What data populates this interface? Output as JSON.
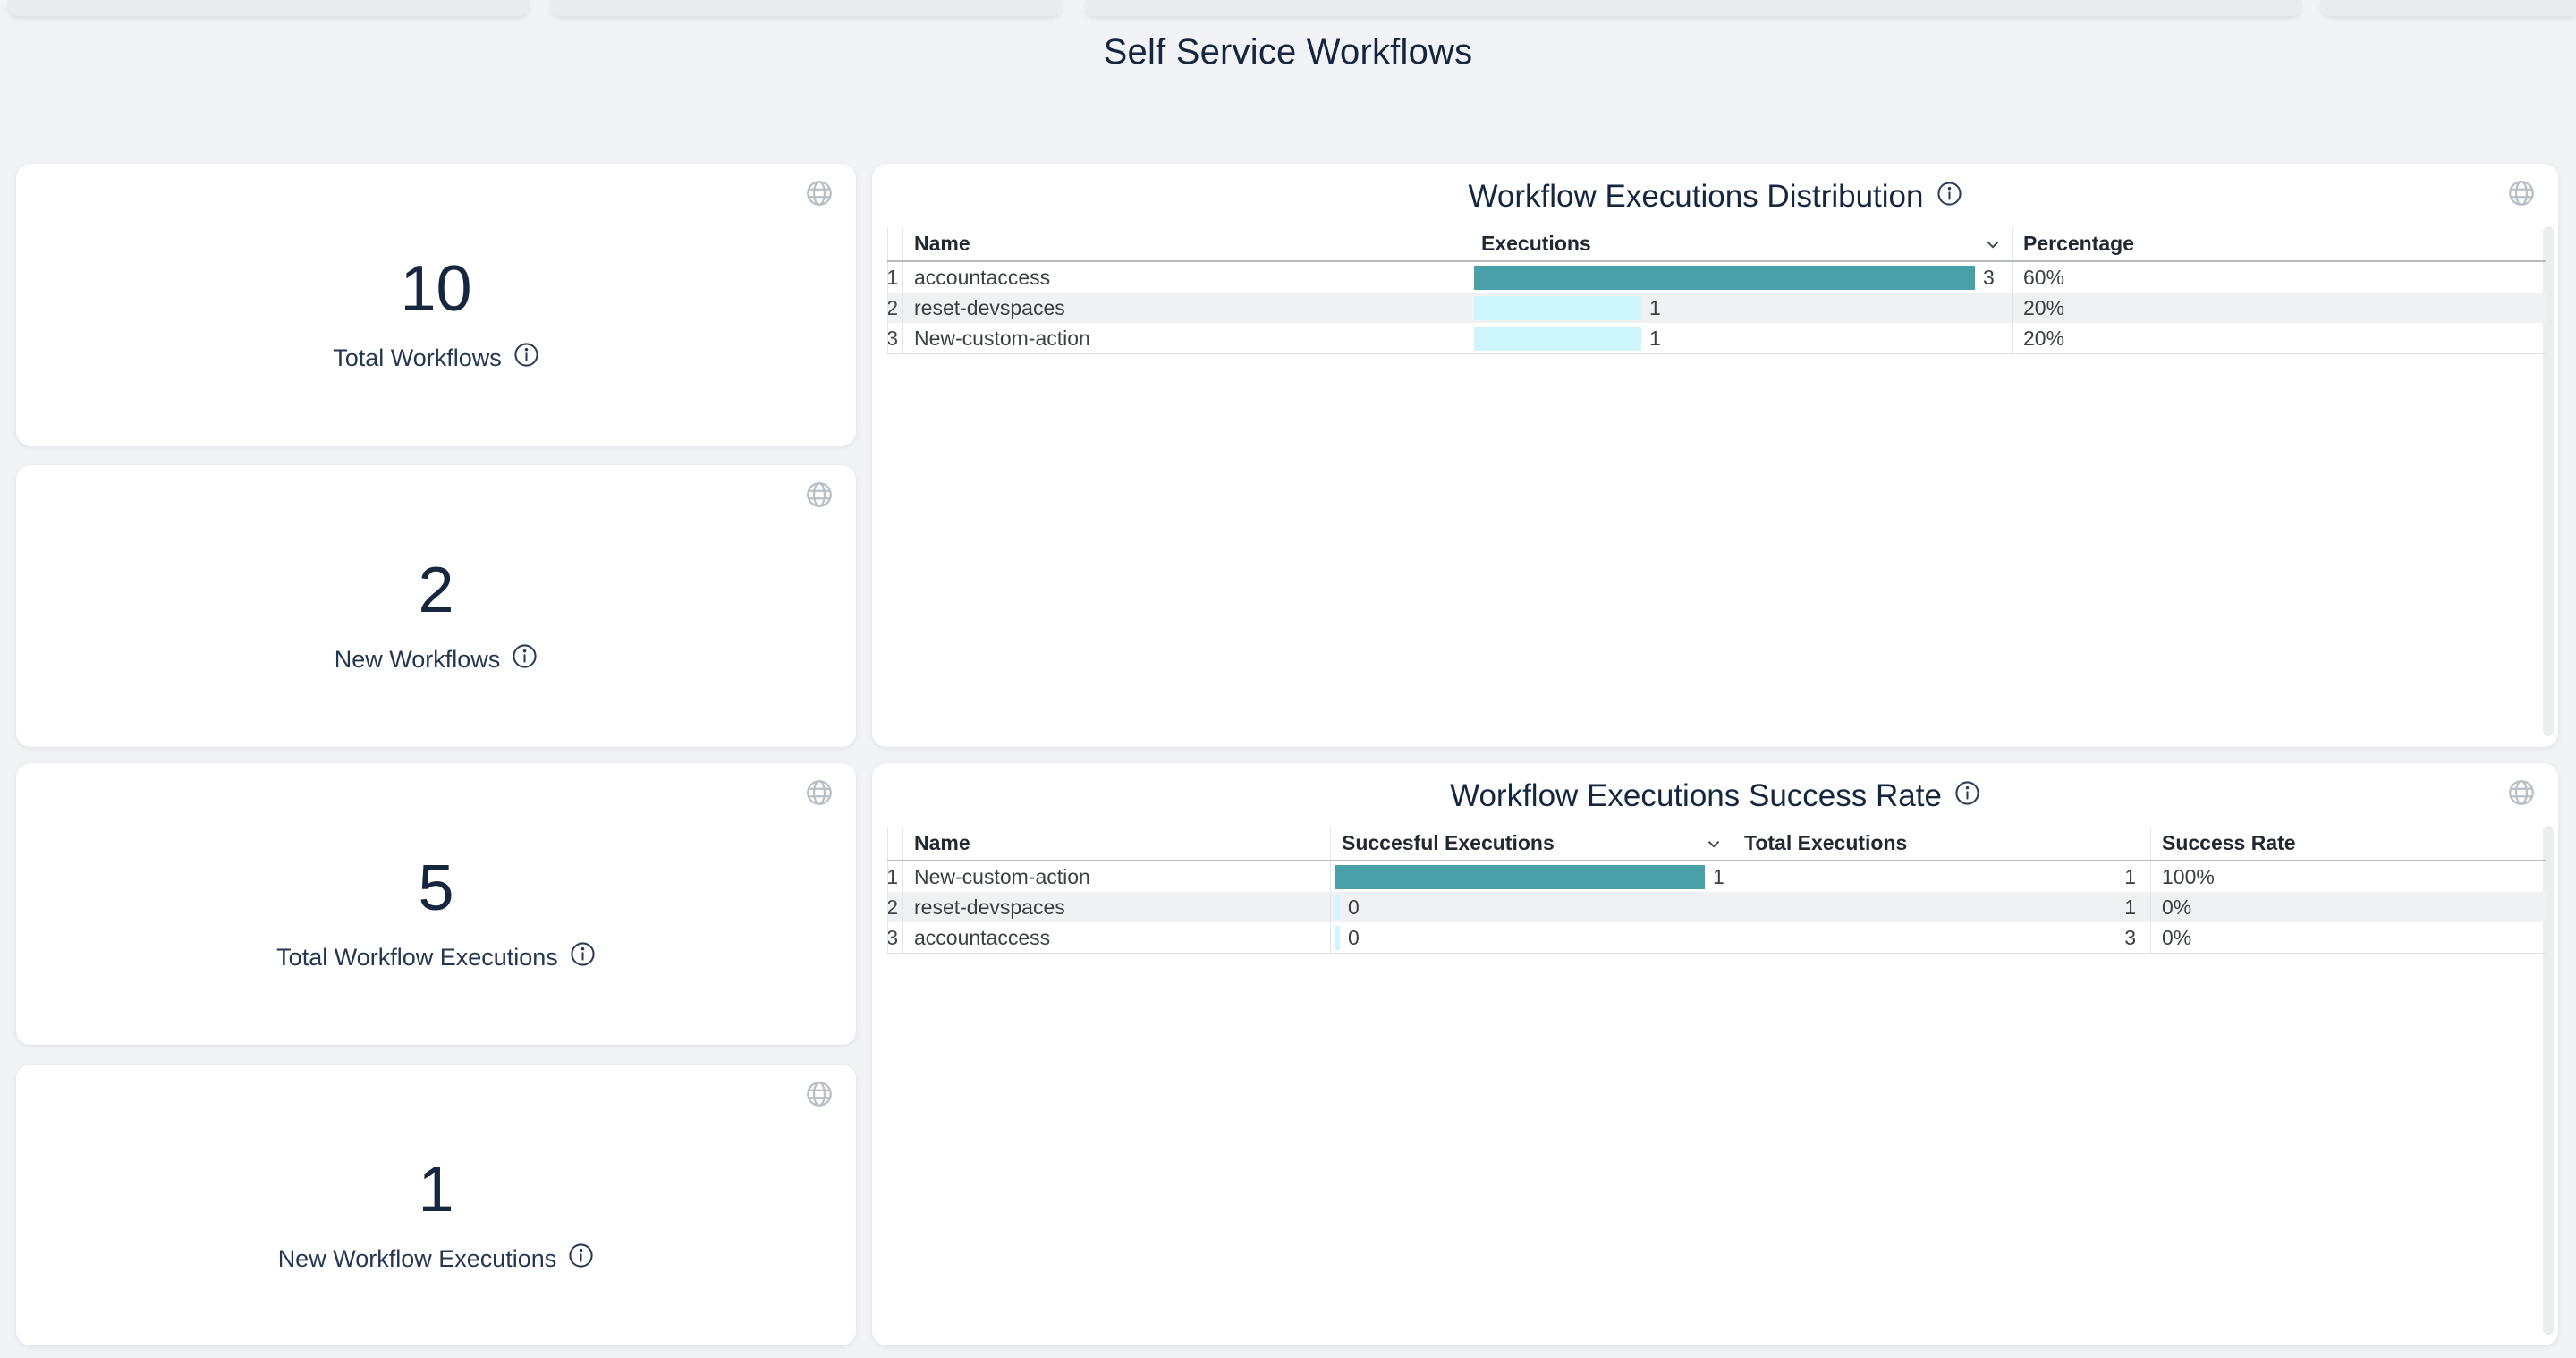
{
  "page": {
    "title": "Self Service Workflows"
  },
  "colors": {
    "bar_high": "#4aa0a8",
    "bar_low": "#cdf6fc",
    "title_text": "#16263f"
  },
  "stat_cards": [
    {
      "value": "10",
      "label": "Total Workflows"
    },
    {
      "value": "2",
      "label": "New Workflows"
    },
    {
      "value": "5",
      "label": "Total Workflow Executions"
    },
    {
      "value": "1",
      "label": "New Workflow Executions"
    }
  ],
  "panels": [
    {
      "title": "Workflow Executions Distribution",
      "columns": [
        "Name",
        "Executions",
        "Percentage"
      ],
      "sorted_column": "Executions",
      "rows": [
        {
          "index": "1",
          "name": "accountaccess",
          "executions": 3,
          "percentage": "60%"
        },
        {
          "index": "2",
          "name": "reset-devspaces",
          "executions": 1,
          "percentage": "20%"
        },
        {
          "index": "3",
          "name": "New-custom-action",
          "executions": 1,
          "percentage": "20%"
        }
      ]
    },
    {
      "title": "Workflow Executions Success Rate",
      "columns": [
        "Name",
        "Succesful Executions",
        "Total Executions",
        "Success Rate"
      ],
      "sorted_column": "Succesful Executions",
      "rows": [
        {
          "index": "1",
          "name": "New-custom-action",
          "successful": 1,
          "total": "1",
          "rate": "100%"
        },
        {
          "index": "2",
          "name": "reset-devspaces",
          "successful": 0,
          "total": "1",
          "rate": "0%"
        },
        {
          "index": "3",
          "name": "accountaccess",
          "successful": 0,
          "total": "3",
          "rate": "0%"
        }
      ]
    }
  ]
}
